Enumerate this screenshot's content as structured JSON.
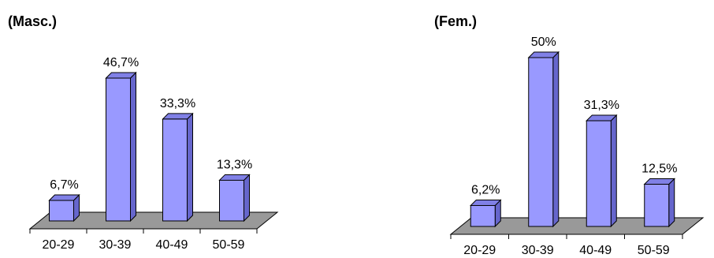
{
  "chart_data": [
    {
      "type": "bar",
      "title": "(Masc.)",
      "categories": [
        "20-29",
        "30-39",
        "40-49",
        "50-59"
      ],
      "values": [
        6.7,
        46.7,
        33.3,
        13.3
      ],
      "data_labels": [
        "6,7%",
        "46,7%",
        "33,3%",
        "13,3%"
      ],
      "ylim": [
        0,
        50
      ],
      "grid": false,
      "style": "3d",
      "bar_color": "#9999ff",
      "bar_side_color": "#6666cc",
      "floor_color": "#999999"
    },
    {
      "type": "bar",
      "title": "(Fem.)",
      "categories": [
        "20-29",
        "30-39",
        "40-49",
        "50-59"
      ],
      "values": [
        6.2,
        50,
        31.3,
        12.5
      ],
      "data_labels": [
        "6,2%",
        "50%",
        "31,3%",
        "12,5%"
      ],
      "ylim": [
        0,
        50
      ],
      "grid": false,
      "style": "3d",
      "bar_color": "#9999ff",
      "bar_side_color": "#6666cc",
      "floor_color": "#999999"
    }
  ]
}
